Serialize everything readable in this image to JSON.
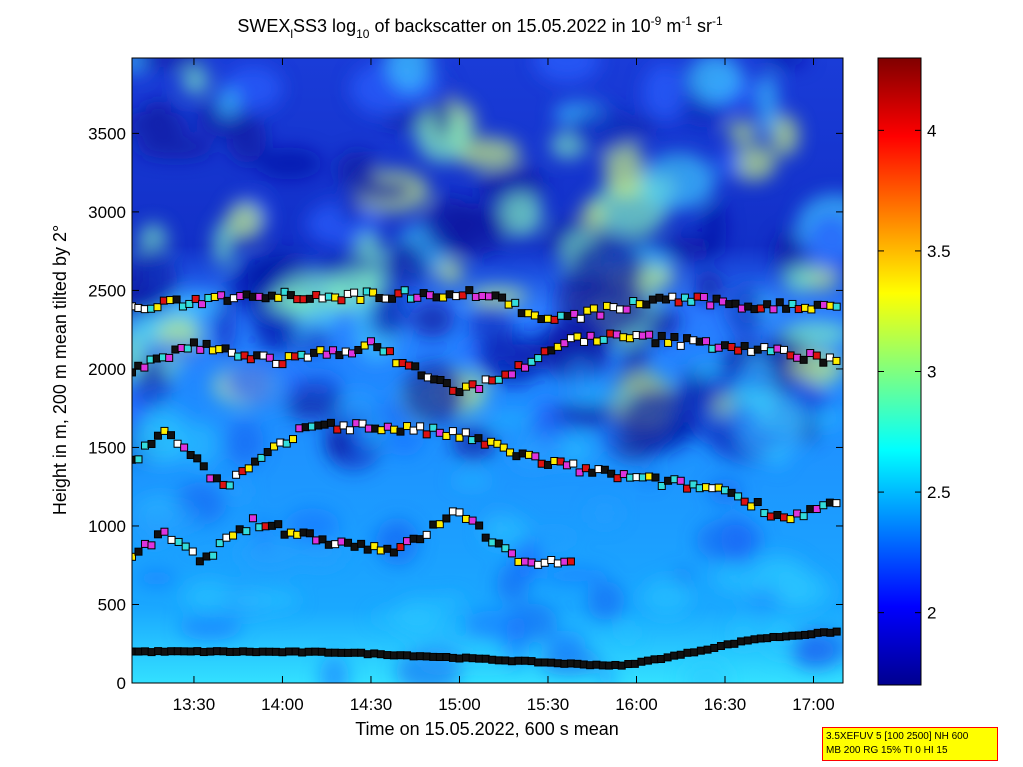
{
  "chart_data": {
    "type": "heatmap",
    "title_parts": {
      "a": "SWEX",
      "a_sub": "l",
      "b": "SS3 log",
      "b_sub": "10",
      "c": " of backscatter on 15.05.2022 in 10",
      "c_sup": "-9",
      "d": " m",
      "d_sup": "-1",
      "e": " sr",
      "e_sup": "-1"
    },
    "xlabel": "Time on 15.05.2022, 600 s mean",
    "ylabel": "Height in m, 200 m mean tilted by 2°",
    "x_ticks": [
      "13:30",
      "14:00",
      "14:30",
      "15:00",
      "15:30",
      "16:00",
      "16:30",
      "17:00"
    ],
    "x_tick_minutes": [
      810,
      840,
      870,
      900,
      930,
      960,
      990,
      1020
    ],
    "xlim_minutes": [
      789,
      1030
    ],
    "y_ticks": [
      0,
      500,
      1000,
      1500,
      2000,
      2500,
      3000,
      3500
    ],
    "ylim": [
      0,
      3980
    ],
    "colorbar": {
      "ticks": [
        2,
        2.5,
        3,
        3.5,
        4
      ],
      "range": [
        1.7,
        4.3
      ],
      "colormap": "jet"
    },
    "layers": [
      {
        "name": "",
        "minutes": [
          789,
          820,
          860,
          900,
          940,
          955,
          975,
          1000,
          1030
        ],
        "heights": [
          200,
          200,
          195,
          160,
          120,
          110,
          180,
          280,
          330
        ]
      },
      {
        "name": "",
        "minutes": [
          789,
          800,
          812,
          830,
          860,
          880,
          900,
          920,
          940
        ],
        "heights": [
          800,
          950,
          780,
          1020,
          890,
          850,
          1100,
          760,
          800
        ]
      },
      {
        "name": "",
        "minutes": [
          789,
          800,
          820,
          850,
          880,
          900,
          930,
          960,
          990,
          1010,
          1030
        ],
        "heights": [
          1400,
          1620,
          1250,
          1650,
          1620,
          1580,
          1400,
          1300,
          1230,
          1050,
          1150
        ]
      },
      {
        "name": "",
        "minutes": [
          789,
          810,
          840,
          870,
          900,
          920,
          940,
          960,
          990,
          1030
        ],
        "heights": [
          1980,
          2150,
          2050,
          2150,
          1850,
          2000,
          2200,
          2200,
          2150,
          2050
        ]
      },
      {
        "name": "",
        "minutes": [
          789,
          830,
          860,
          890,
          910,
          930,
          970,
          1000,
          1030
        ],
        "heights": [
          2380,
          2480,
          2460,
          2480,
          2480,
          2300,
          2450,
          2400,
          2400
        ]
      }
    ],
    "note_box": [
      "3.5XEFUV 5 [100 2500] NH 600",
      "MB 200 RG 15% TI 0 HI 15"
    ]
  }
}
